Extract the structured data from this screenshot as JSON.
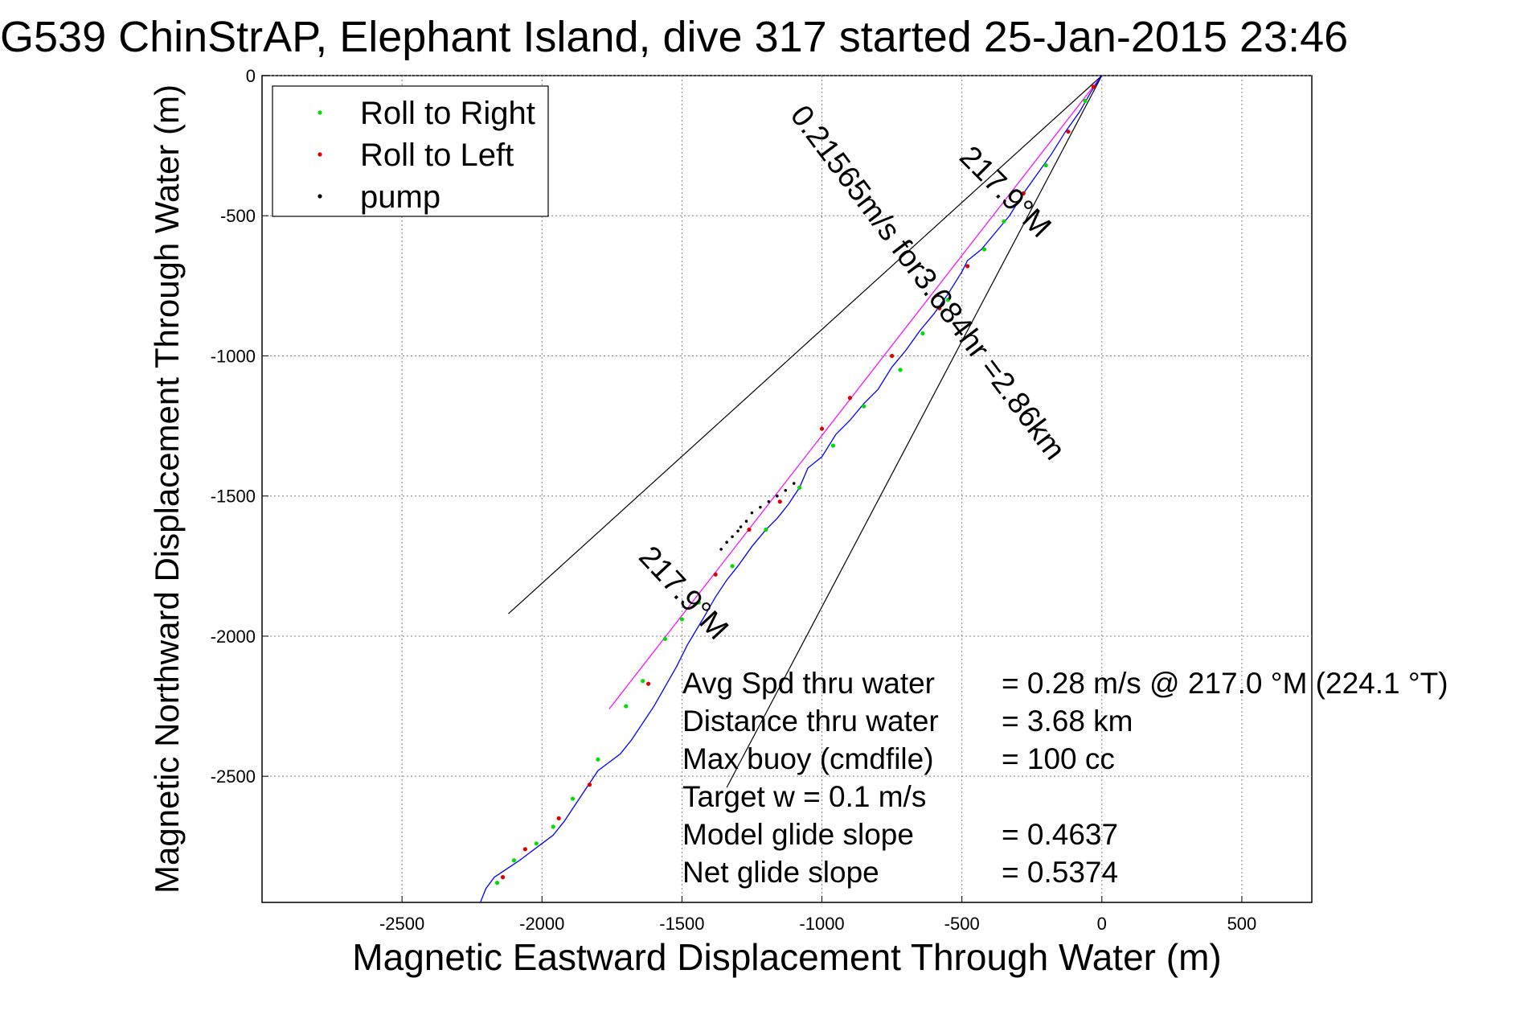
{
  "chart_data": {
    "type": "scatter",
    "title": "G539 ChinStrAP, Elephant Island, dive 317 started 25-Jan-2015 23:46",
    "xlabel": "Magnetic Eastward Displacement Through Water (m)",
    "ylabel": "Magnetic Northward Displacement Through Water (m)",
    "xlim": [
      -3000,
      750
    ],
    "ylim": [
      -2950,
      0
    ],
    "xticks": [
      -2500,
      -2000,
      -1500,
      -1000,
      -500,
      0,
      500
    ],
    "yticks": [
      0,
      -500,
      -1000,
      -1500,
      -2000,
      -2500
    ],
    "grid": true,
    "legend": {
      "placement": "top-left",
      "entries": [
        {
          "label": "Roll to Right",
          "color": "#00dd00"
        },
        {
          "label": "Roll to Left",
          "color": "#dd0000"
        },
        {
          "label": "pump",
          "color": "#000000"
        }
      ]
    },
    "track": {
      "color": "#0000ff",
      "x": [
        0,
        -40,
        -80,
        -130,
        -180,
        -230,
        -280,
        -330,
        -380,
        -430,
        -480,
        -500,
        -550,
        -600,
        -650,
        -700,
        -750,
        -800,
        -850,
        -900,
        -950,
        -1000,
        -1050,
        -1080,
        -1120,
        -1160,
        -1200,
        -1250,
        -1300,
        -1340,
        -1380,
        -1420,
        -1450,
        -1480,
        -1520,
        -1560,
        -1600,
        -1640,
        -1680,
        -1720,
        -1760,
        -1800,
        -1840,
        -1880,
        -1920,
        -1960,
        -2000,
        -2040,
        -2080,
        -2110,
        -2140,
        -2170,
        -2200,
        -2220
      ],
      "y": [
        0,
        -60,
        -130,
        -200,
        -280,
        -350,
        -420,
        -500,
        -560,
        -620,
        -660,
        -700,
        -780,
        -850,
        -910,
        -980,
        -1040,
        -1120,
        -1170,
        -1230,
        -1280,
        -1360,
        -1400,
        -1470,
        -1530,
        -1580,
        -1620,
        -1680,
        -1750,
        -1800,
        -1860,
        -1930,
        -1980,
        -2030,
        -2110,
        -2180,
        -2250,
        -2310,
        -2370,
        -2420,
        -2450,
        -2480,
        -2540,
        -2600,
        -2660,
        -2710,
        -2740,
        -2770,
        -2800,
        -2820,
        -2840,
        -2860,
        -2900,
        -2950
      ]
    },
    "roll_right_points": {
      "x": [
        -60,
        -200,
        -350,
        -420,
        -550,
        -640,
        -720,
        -850,
        -960,
        -1080,
        -1200,
        -1320,
        -1440,
        -1500,
        -1560,
        -1640,
        -1700,
        -1800,
        -1890,
        -1960,
        -2020,
        -2100,
        -2160
      ],
      "y": [
        -90,
        -320,
        -520,
        -620,
        -800,
        -920,
        -1050,
        -1180,
        -1320,
        -1470,
        -1620,
        -1750,
        -1880,
        -1940,
        -2010,
        -2160,
        -2250,
        -2440,
        -2580,
        -2680,
        -2740,
        -2800,
        -2880
      ]
    },
    "roll_left_points": {
      "x": [
        -30,
        -120,
        -280,
        -480,
        -580,
        -750,
        -900,
        -1000,
        -1150,
        -1260,
        -1380,
        -1620,
        -1830,
        -1940,
        -2060,
        -2140
      ],
      "y": [
        -40,
        -200,
        -420,
        -680,
        -830,
        -1000,
        -1150,
        -1260,
        -1520,
        -1620,
        -1780,
        -2170,
        -2530,
        -2650,
        -2760,
        -2860
      ]
    },
    "pump_points": {
      "x": [
        -1100,
        -1130,
        -1160,
        -1190,
        -1220,
        -1250,
        -1270,
        -1290,
        -1300,
        -1320,
        -1340,
        -1360
      ],
      "y": [
        -1455,
        -1480,
        -1500,
        -1520,
        -1540,
        -1560,
        -1590,
        -1610,
        -1625,
        -1645,
        -1665,
        -1690
      ]
    },
    "heading_lines": [
      {
        "name": "center",
        "color": "#ff00ff",
        "x": [
          0,
          -1760
        ],
        "y": [
          0,
          -2260
        ]
      },
      {
        "name": "left-bound",
        "color": "#000000",
        "x": [
          0,
          -2120
        ],
        "y": [
          0,
          -1920
        ]
      },
      {
        "name": "right-bound",
        "color": "#000000",
        "x": [
          0,
          -1340
        ],
        "y": [
          0,
          -2540
        ]
      }
    ],
    "annotations": [
      {
        "text": "217.9°M",
        "x": -370,
        "y": -440,
        "angle": 45
      },
      {
        "text": "0.21565m/s for3.684hr =2.86km",
        "x": -650,
        "y": -760,
        "angle": 53
      },
      {
        "text": "217.9°M",
        "x": -1520,
        "y": -1870,
        "angle": 47
      }
    ],
    "stats": [
      {
        "label": "Avg Spd thru water",
        "value": "=  0.28 m/s @ 217.0 °M (224.1 °T)"
      },
      {
        "label": "Distance thru water",
        "value": "=  3.68 km"
      },
      {
        "label": "Max buoy (cmdfile)",
        "value": "= 100 cc"
      },
      {
        "label": "Target w    = 0.1 m/s",
        "value": ""
      },
      {
        "label": "Model glide slope",
        "value": "= 0.4637"
      },
      {
        "label": "Net glide slope",
        "value": "= 0.5374"
      }
    ]
  }
}
